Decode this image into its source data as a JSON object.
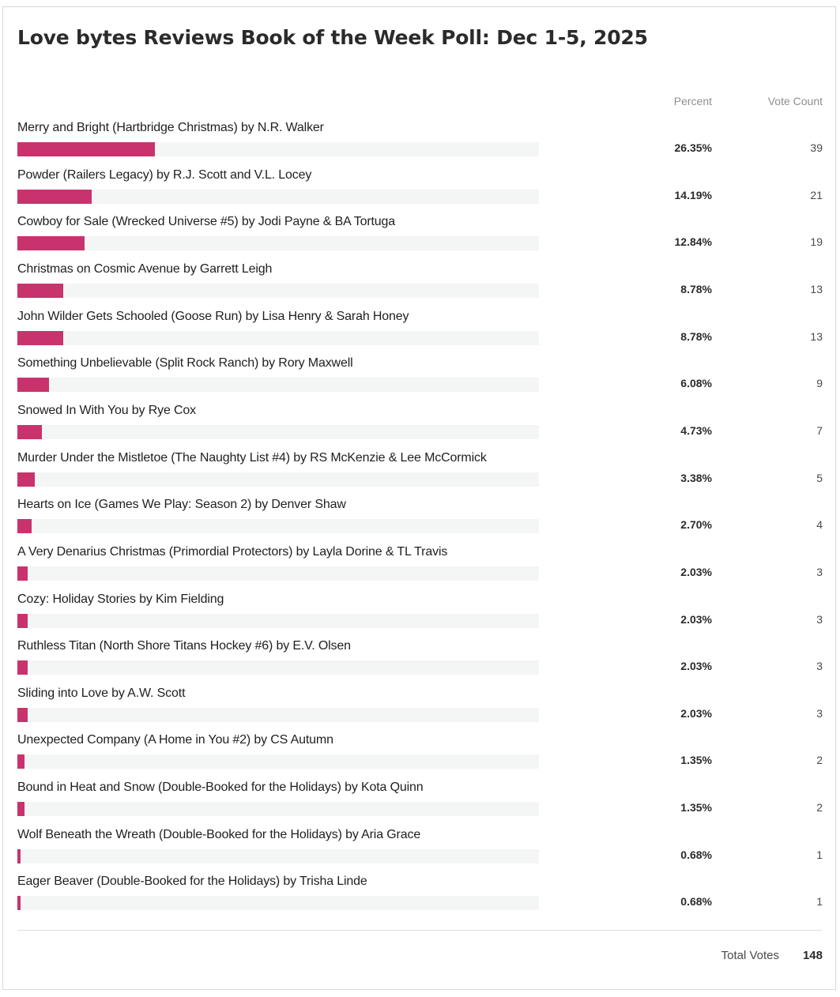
{
  "poll": {
    "title": "Love bytes Reviews Book of the Week Poll: Dec 1-5, 2025",
    "columns": {
      "percent": "Percent",
      "vote_count": "Vote Count"
    },
    "options": [
      {
        "label": "Merry and Bright (Hartbridge Christmas) by N.R. Walker",
        "percent": "26.35%",
        "votes": "39",
        "share": 26.35
      },
      {
        "label": "Powder (Railers Legacy) by R.J. Scott and V.L. Locey",
        "percent": "14.19%",
        "votes": "21",
        "share": 14.19
      },
      {
        "label": "Cowboy for Sale (Wrecked Universe #5) by Jodi Payne & BA Tortuga",
        "percent": "12.84%",
        "votes": "19",
        "share": 12.84
      },
      {
        "label": "Christmas on Cosmic Avenue by Garrett Leigh",
        "percent": "8.78%",
        "votes": "13",
        "share": 8.78
      },
      {
        "label": "John Wilder Gets Schooled (Goose Run) by Lisa Henry & Sarah Honey",
        "percent": "8.78%",
        "votes": "13",
        "share": 8.78
      },
      {
        "label": "Something Unbelievable (Split Rock Ranch) by Rory Maxwell",
        "percent": "6.08%",
        "votes": "9",
        "share": 6.08
      },
      {
        "label": "Snowed In With You by Rye Cox",
        "percent": "4.73%",
        "votes": "7",
        "share": 4.73
      },
      {
        "label": "Murder Under the Mistletoe (The Naughty List #4) by RS McKenzie & Lee McCormick",
        "percent": "3.38%",
        "votes": "5",
        "share": 3.38
      },
      {
        "label": "Hearts on Ice (Games We Play: Season 2) by Denver Shaw",
        "percent": "2.70%",
        "votes": "4",
        "share": 2.7
      },
      {
        "label": "A Very Denarius Christmas (Primordial Protectors) by Layla Dorine & TL Travis",
        "percent": "2.03%",
        "votes": "3",
        "share": 2.03
      },
      {
        "label": "Cozy: Holiday Stories by Kim Fielding",
        "percent": "2.03%",
        "votes": "3",
        "share": 2.03
      },
      {
        "label": "Ruthless Titan (North Shore Titans Hockey #6) by E.V. Olsen",
        "percent": "2.03%",
        "votes": "3",
        "share": 2.03
      },
      {
        "label": "Sliding into Love by A.W. Scott",
        "percent": "2.03%",
        "votes": "3",
        "share": 2.03
      },
      {
        "label": "Unexpected Company (A Home in You #2) by CS Autumn",
        "percent": "1.35%",
        "votes": "2",
        "share": 1.35
      },
      {
        "label": "Bound in Heat and Snow (Double-Booked for the Holidays) by Kota Quinn",
        "percent": "1.35%",
        "votes": "2",
        "share": 1.35
      },
      {
        "label": "Wolf Beneath the Wreath (Double-Booked for the Holidays) by Aria Grace",
        "percent": "0.68%",
        "votes": "1",
        "share": 0.68
      },
      {
        "label": "Eager Beaver (Double-Booked for the Holidays) by Trisha Linde",
        "percent": "0.68%",
        "votes": "1",
        "share": 0.68
      }
    ],
    "total": {
      "label": "Total Votes",
      "value": "148"
    }
  },
  "colors": {
    "bar_fill": "#c8336e",
    "bar_track": "#f4f5f5"
  }
}
